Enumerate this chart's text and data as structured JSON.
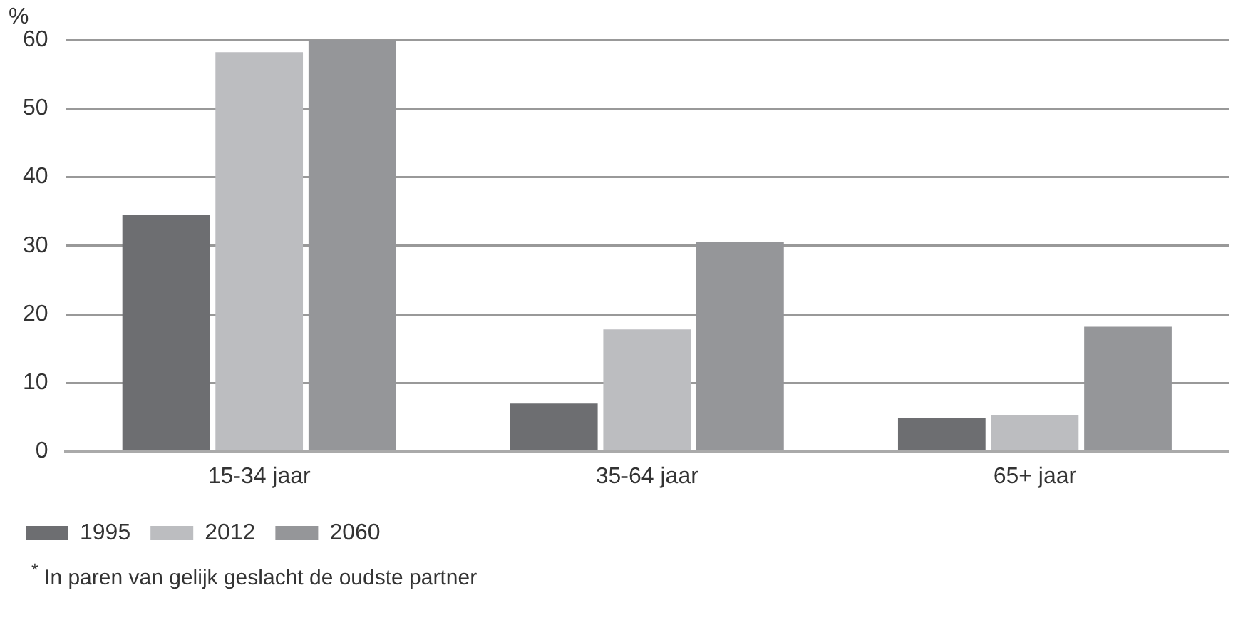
{
  "chart_data": {
    "type": "bar",
    "ylabel": "%",
    "categories": [
      "15-34 jaar",
      "35-64 jaar",
      "65+ jaar"
    ],
    "series": [
      {
        "name": "1995",
        "color": "#6d6e71",
        "values": [
          34.5,
          7.0,
          4.9
        ]
      },
      {
        "name": "2012",
        "color": "#bcbdc0",
        "values": [
          58.2,
          17.8,
          5.3
        ]
      },
      {
        "name": "2060",
        "color": "#959699",
        "values": [
          60.0,
          30.6,
          18.2
        ]
      }
    ],
    "ylim": [
      0,
      60
    ],
    "yticks": [
      0,
      10,
      20,
      30,
      40,
      50,
      60
    ],
    "grid": "y",
    "legend": "bottom left",
    "annotations": [
      "$^{*}$ In paren van gelijk geslacht de oudste partner"
    ]
  }
}
